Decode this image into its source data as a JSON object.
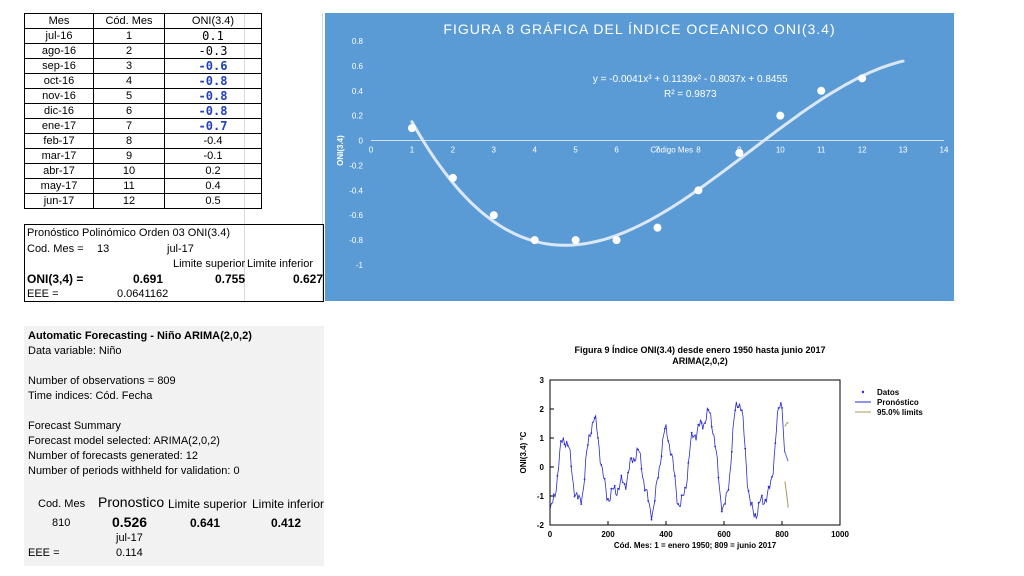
{
  "table": {
    "headers": [
      "Mes",
      "Cód. Mes",
      "ONI(3.4)"
    ],
    "rows": [
      {
        "mes": "jul-16",
        "cod": "1",
        "oni": "0.1"
      },
      {
        "mes": "ago-16",
        "cod": "2",
        "oni": "-0.3"
      },
      {
        "mes": "sep-16",
        "cod": "3",
        "oni": "-0.6"
      },
      {
        "mes": "oct-16",
        "cod": "4",
        "oni": "-0.8"
      },
      {
        "mes": "nov-16",
        "cod": "5",
        "oni": "-0.8"
      },
      {
        "mes": "dic-16",
        "cod": "6",
        "oni": "-0.8"
      },
      {
        "mes": "ene-17",
        "cod": "7",
        "oni": "-0.7"
      },
      {
        "mes": "feb-17",
        "cod": "8",
        "oni": "-0.4"
      },
      {
        "mes": "mar-17",
        "cod": "9",
        "oni": "-0.1"
      },
      {
        "mes": "abr-17",
        "cod": "10",
        "oni": "0.2"
      },
      {
        "mes": "may-17",
        "cod": "11",
        "oni": "0.4"
      },
      {
        "mes": "jun-17",
        "cod": "12",
        "oni": "0.5"
      }
    ]
  },
  "poly": {
    "title": "Pronóstico Polinómico Orden 03 ONI(3.4)",
    "cod_label": "Cod. Mes  =",
    "cod_value": "13",
    "month": "jul-17",
    "lim_sup_label": "Limite superior",
    "lim_inf_label": "Limite inferior",
    "oni_label": "ONI(3,4) =",
    "oni_value": "0.691",
    "lim_sup": "0.755",
    "lim_inf": "0.627",
    "eee_label": "EEE =",
    "eee_value": "0.0641162"
  },
  "chart8": {
    "title": "FIGURA  8          GRÁFICA DEL ÍNDICE OCEANICO ONI(3.4)",
    "equation": "y = -0.0041x³ + 0.1139x² - 0.8037x + 0.8455",
    "r2": "R² = 0.9873",
    "xlabel": "Código Mes",
    "ylabel": "ONI(3.4)"
  },
  "arima": {
    "title": "Automatic Forecasting - Niño  ARIMA(2,0,2)",
    "data_variable": "Data variable: Niño",
    "n_obs": "Number of observations = 809",
    "time_indices": "Time indices: Cód. Fecha",
    "summary": "Forecast Summary",
    "model": "Forecast model selected: ARIMA(2,0,2)",
    "n_forecasts": "Number of forecasts generated: 12",
    "withheld": "Number of periods withheld for validation: 0",
    "col_cod": "Cod. Mes",
    "col_pron": "Pronostico",
    "col_sup": "Limite superior",
    "col_inf": "Limite inferior",
    "cod": "810",
    "pron": "0.526",
    "sup": "0.641",
    "inf": "0.412",
    "month": "jul-17",
    "eee_label": "EEE  =",
    "eee_value": "0.114"
  },
  "fig9": {
    "title_line1": "Figura 9     Índice ONI(3.4) desde enero 1950 hasta junio 2017",
    "title_line2": "ARIMA(2,0,2)",
    "xlabel": "Cód. Mes: 1 = enero 1950;  809 = junio 2017",
    "ylabel": "ONI(3.4) °C",
    "legend": [
      "Datos",
      "Pronóstico",
      "95.0% limits"
    ]
  },
  "chart_data": [
    {
      "type": "scatter",
      "title": "GRÁFICA DEL ÍNDICE OCEANICO ONI(3.4)",
      "xlabel": "Código Mes",
      "ylabel": "ONI(3.4)",
      "x": [
        1,
        2,
        3,
        4,
        5,
        6,
        7,
        8,
        9,
        10,
        11,
        12
      ],
      "y": [
        0.1,
        -0.3,
        -0.6,
        -0.8,
        -0.8,
        -0.8,
        -0.7,
        -0.4,
        -0.1,
        0.2,
        0.4,
        0.5
      ],
      "trendline": {
        "type": "polynomial",
        "order": 3,
        "coefficients": [
          -0.0041,
          0.1139,
          -0.8037,
          0.8455
        ],
        "x_range": [
          1,
          13
        ]
      },
      "xlim": [
        0,
        14
      ],
      "ylim": [
        -1,
        0.8
      ],
      "xticks": [
        0,
        1,
        2,
        3,
        4,
        5,
        6,
        7,
        8,
        9,
        10,
        11,
        12,
        13,
        14
      ],
      "yticks": [
        0.8,
        0.6,
        0.4,
        0.2,
        0,
        -0.2,
        -0.4,
        -0.6,
        -0.8,
        -1
      ],
      "grid": false,
      "legend": "none"
    },
    {
      "type": "line",
      "title": "Índice ONI(3.4) desde enero 1950 hasta junio 2017",
      "xlabel": "Cód. Mes: 1 = enero 1950;  809 = junio 2017",
      "ylabel": "ONI(3.4) °C",
      "xlim": [
        0,
        1000
      ],
      "ylim": [
        -2,
        3
      ],
      "xticks": [
        0,
        200,
        400,
        600,
        800,
        1000
      ],
      "yticks": [
        -2,
        -1,
        0,
        1,
        2,
        3
      ],
      "series": [
        {
          "name": "Datos",
          "x": [
            1,
            50,
            100,
            150,
            200,
            250,
            300,
            350,
            400,
            450,
            500,
            550,
            600,
            650,
            700,
            750,
            800,
            809
          ],
          "y": [
            -1.5,
            1.0,
            -1.2,
            1.6,
            -1.0,
            -0.6,
            0.5,
            -1.5,
            1.2,
            -1.3,
            1.2,
            1.8,
            -1.4,
            2.3,
            -1.6,
            -1.0,
            2.3,
            0.5
          ]
        },
        {
          "name": "Pronóstico",
          "x": [
            810,
            821
          ],
          "y": [
            0.526,
            0.2
          ]
        },
        {
          "name": "95.0% limits",
          "x": [
            810,
            821
          ],
          "y": [
            1.4,
            -1.4
          ]
        }
      ],
      "legend": "right"
    }
  ]
}
